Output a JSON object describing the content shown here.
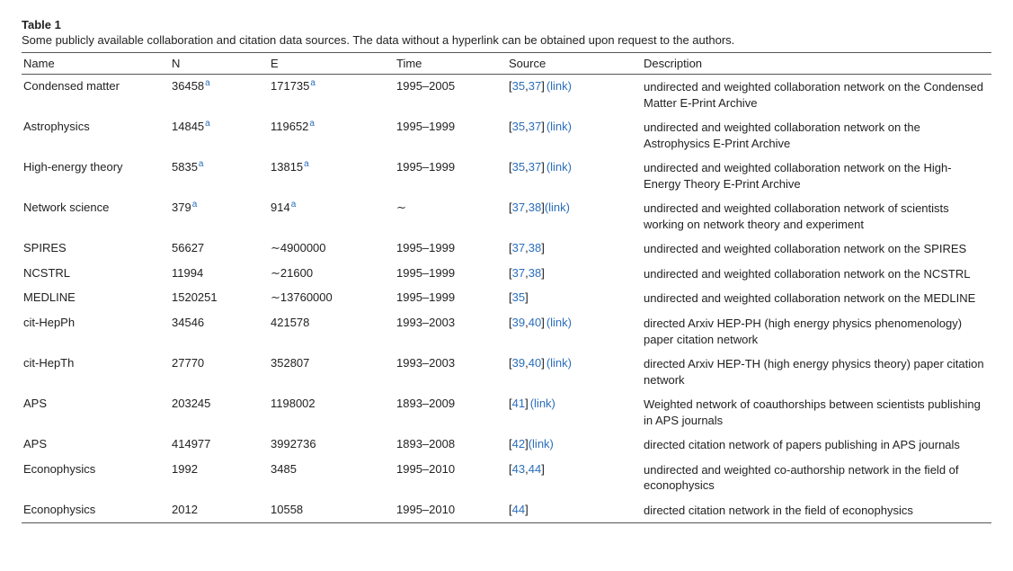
{
  "table_title": "Table 1",
  "table_caption": "Some publicly available collaboration and citation data sources. The data without a hyperlink can be obtained upon request to the authors.",
  "columns": {
    "name": "Name",
    "n": "N",
    "e": "E",
    "time": "Time",
    "source": "Source",
    "description": "Description"
  },
  "link_label": "(link)",
  "sup_char": "a",
  "rows": [
    {
      "name": "Condensed matter",
      "n": "36458",
      "n_sup": true,
      "e": "171735",
      "e_sup": true,
      "time": "1995–2005",
      "refs": [
        "35",
        "37"
      ],
      "has_link": true,
      "link_spaced": true,
      "desc": "undirected and weighted collaboration network on the Condensed Matter E-Print Archive"
    },
    {
      "name": "Astrophysics",
      "n": "14845",
      "n_sup": true,
      "e": "119652",
      "e_sup": true,
      "time": "1995–1999",
      "refs": [
        "35",
        "37"
      ],
      "has_link": true,
      "link_spaced": true,
      "desc": "undirected and weighted collaboration network on the Astrophysics E-Print Archive"
    },
    {
      "name": "High-energy theory",
      "n": "5835",
      "n_sup": true,
      "e": "13815",
      "e_sup": true,
      "time": "1995–1999",
      "refs": [
        "35",
        "37"
      ],
      "has_link": true,
      "link_spaced": true,
      "desc": "undirected and weighted collaboration network on the High-Energy Theory E-Print Archive"
    },
    {
      "name": "Network science",
      "n": "379",
      "n_sup": true,
      "e": "914",
      "e_sup": true,
      "time": "∼",
      "refs": [
        "37",
        "38"
      ],
      "has_link": true,
      "link_spaced": false,
      "desc": "undirected and weighted collaboration network of scientists working on network theory and experiment"
    },
    {
      "name": "SPIRES",
      "n": "56627",
      "n_sup": false,
      "e": "∼4900000",
      "e_sup": false,
      "time": "1995–1999",
      "refs": [
        "37",
        "38"
      ],
      "has_link": false,
      "desc": "undirected and weighted collaboration network on the SPIRES"
    },
    {
      "name": "NCSTRL",
      "n": "11994",
      "n_sup": false,
      "e": "∼21600",
      "e_sup": false,
      "time": "1995–1999",
      "refs": [
        "37",
        "38"
      ],
      "has_link": false,
      "desc": "undirected and weighted collaboration network on the NCSTRL"
    },
    {
      "name": "MEDLINE",
      "n": "1520251",
      "n_sup": false,
      "e": "∼13760000",
      "e_sup": false,
      "time": "1995–1999",
      "refs": [
        "35"
      ],
      "has_link": false,
      "desc": "undirected and weighted collaboration network on the MEDLINE"
    },
    {
      "name": "cit-HepPh",
      "n": "34546",
      "n_sup": false,
      "e": "421578",
      "e_sup": false,
      "time": "1993–2003",
      "refs": [
        "39",
        "40"
      ],
      "has_link": true,
      "link_spaced": true,
      "desc": "directed Arxiv HEP-PH (high energy physics phenomenology) paper citation network"
    },
    {
      "name": "cit-HepTh",
      "n": "27770",
      "n_sup": false,
      "e": "352807",
      "e_sup": false,
      "time": "1993–2003",
      "refs": [
        "39",
        "40"
      ],
      "has_link": true,
      "link_spaced": true,
      "desc": "directed Arxiv HEP-TH (high energy physics theory) paper citation network"
    },
    {
      "name": "APS",
      "n": "203245",
      "n_sup": false,
      "e": "1198002",
      "e_sup": false,
      "time": "1893–2009",
      "refs": [
        "41"
      ],
      "has_link": true,
      "link_spaced": true,
      "desc": "Weighted network of coauthorships between scientists publishing in APS journals"
    },
    {
      "name": "APS",
      "n": "414977",
      "n_sup": false,
      "e": "3992736",
      "e_sup": false,
      "time": "1893–2008",
      "refs": [
        "42"
      ],
      "has_link": true,
      "link_spaced": false,
      "desc": "directed citation network of papers publishing in APS journals"
    },
    {
      "name": "Econophysics",
      "n": "1992",
      "n_sup": false,
      "e": "3485",
      "e_sup": false,
      "time": "1995–2010",
      "refs": [
        "43",
        "44"
      ],
      "has_link": false,
      "desc": "undirected and weighted co-authorship network in the field of econophysics"
    },
    {
      "name": "Econophysics",
      "n": "2012",
      "n_sup": false,
      "e": "10558",
      "e_sup": false,
      "time": "1995–2010",
      "refs": [
        "44"
      ],
      "has_link": false,
      "desc": "directed citation network in the field of econophysics"
    }
  ],
  "style": {
    "link_color": "#2a6ebb",
    "text_color": "#222222",
    "rule_color": "#555555",
    "background": "#ffffff",
    "font_size_pt": 10
  }
}
